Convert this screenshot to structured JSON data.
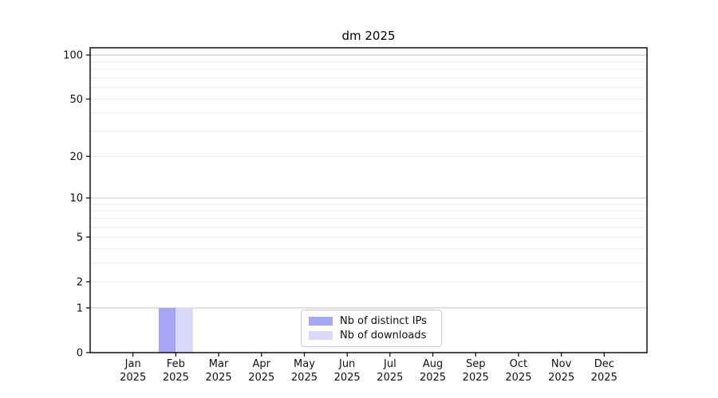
{
  "chart_data": {
    "type": "bar",
    "title": "dm 2025",
    "months": [
      "Jan",
      "Feb",
      "Mar",
      "Apr",
      "May",
      "Jun",
      "Jul",
      "Aug",
      "Sep",
      "Oct",
      "Nov",
      "Dec"
    ],
    "year": "2025",
    "series": [
      {
        "name": "Nb of distinct IPs",
        "color": "#a6a6f7",
        "values": [
          0,
          1,
          0,
          0,
          0,
          0,
          0,
          0,
          0,
          0,
          0,
          0
        ]
      },
      {
        "name": "Nb of downloads",
        "color": "#dadaf8",
        "values": [
          0,
          1,
          0,
          0,
          0,
          0,
          0,
          0,
          0,
          0,
          0,
          0
        ]
      }
    ],
    "y_ticks": [
      0,
      1,
      2,
      5,
      10,
      20,
      50,
      100
    ],
    "y_scale": "log1p",
    "ylim": [
      0,
      112
    ],
    "xlim": [
      -1,
      12
    ],
    "bar_width_fraction": 0.4,
    "grid": {
      "major_values": [
        1,
        10,
        100
      ],
      "minor_values": [
        2,
        3,
        4,
        5,
        6,
        7,
        8,
        9,
        20,
        30,
        40,
        50,
        60,
        70,
        80,
        90
      ],
      "major_color": "#c8c8c8",
      "minor_color": "#ececec"
    },
    "legend_position": "lower center",
    "axis_color": "#000000"
  }
}
